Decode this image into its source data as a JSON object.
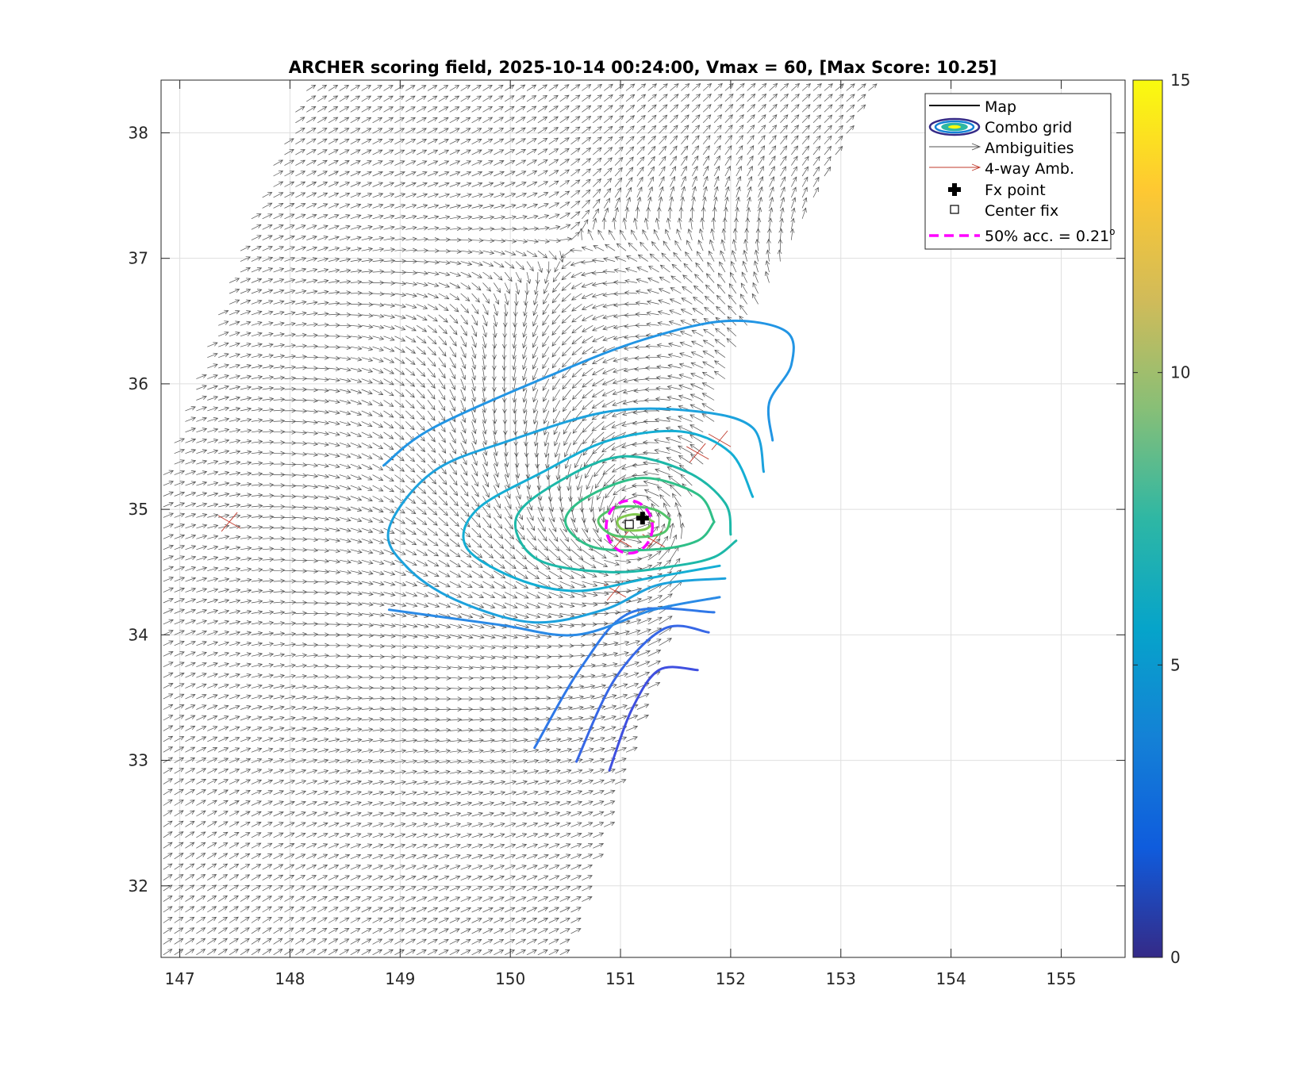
{
  "chart_data": {
    "type": "quiver-contour",
    "title": "ARCHER scoring field, 2025-10-14 00:24:00, Vmax = 60, [Max Score: 10.25]",
    "xlabel": "",
    "ylabel": "",
    "xlim": [
      146.83,
      155.58
    ],
    "ylim": [
      31.43,
      38.42
    ],
    "xticks": [
      147,
      148,
      149,
      150,
      151,
      152,
      153,
      154,
      155
    ],
    "yticks": [
      32,
      33,
      34,
      35,
      36,
      37,
      38
    ],
    "grid": true,
    "colorbar": {
      "min": 0,
      "max": 15,
      "ticks": [
        0,
        5,
        10,
        15
      ]
    },
    "vortex_center": {
      "lon": 151.15,
      "lat": 34.9
    },
    "center_fix": {
      "lon": 151.08,
      "lat": 34.88
    },
    "fx_point": {
      "lon": 151.2,
      "lat": 34.93
    },
    "accuracy_circle": {
      "lon": 151.08,
      "lat": 34.86,
      "radius_deg": 0.21
    },
    "four_way_amb_points": [
      {
        "lon": 147.45,
        "lat": 34.9
      },
      {
        "lon": 151.9,
        "lat": 35.55
      },
      {
        "lon": 151.7,
        "lat": 35.45
      },
      {
        "lon": 151.3,
        "lat": 34.75
      },
      {
        "lon": 151.0,
        "lat": 34.75
      },
      {
        "lon": 150.95,
        "lat": 34.35
      }
    ],
    "swath": {
      "left_edge": [
        [
          146.83,
          35.25
        ],
        [
          147.5,
          37.0
        ],
        [
          148.15,
          38.42
        ]
      ],
      "right_edge": [
        [
          153.3,
          38.42
        ],
        [
          152.0,
          36.15
        ],
        [
          151.55,
          34.7
        ],
        [
          151.3,
          33.7
        ],
        [
          151.0,
          32.9
        ],
        [
          150.5,
          31.43
        ]
      ]
    },
    "contours": [
      {
        "level": 3.5,
        "color": "#3f4fe0",
        "points": [
          [
            150.9,
            32.92
          ],
          [
            151.1,
            33.4
          ],
          [
            151.35,
            33.72
          ],
          [
            151.7,
            33.72
          ]
        ]
      },
      {
        "level": 4.0,
        "color": "#3767e6",
        "points": [
          [
            150.6,
            32.99
          ],
          [
            150.95,
            33.65
          ],
          [
            151.4,
            34.05
          ],
          [
            151.8,
            34.02
          ]
        ]
      },
      {
        "level": 4.5,
        "color": "#2f78e8",
        "points": [
          [
            150.22,
            33.1
          ],
          [
            150.65,
            33.75
          ],
          [
            151.1,
            34.18
          ],
          [
            151.85,
            34.18
          ]
        ]
      },
      {
        "level": 5.0,
        "color": "#2a8ae6",
        "points": [
          [
            148.9,
            34.2
          ],
          [
            149.9,
            34.08
          ],
          [
            150.6,
            34.0
          ],
          [
            151.3,
            34.2
          ],
          [
            151.9,
            34.3
          ]
        ]
      },
      {
        "level": 5.2,
        "color": "#2295e4",
        "points": [
          [
            148.85,
            35.35
          ],
          [
            149.3,
            35.65
          ],
          [
            150.4,
            36.08
          ],
          [
            151.2,
            36.35
          ],
          [
            151.95,
            36.5
          ],
          [
            152.5,
            36.42
          ],
          [
            152.55,
            36.15
          ],
          [
            152.35,
            35.85
          ],
          [
            152.38,
            35.55
          ]
        ]
      },
      {
        "level": 5.8,
        "color": "#1ca2dd",
        "points": [
          [
            152.3,
            35.3
          ],
          [
            152.2,
            35.65
          ],
          [
            151.7,
            35.78
          ],
          [
            150.9,
            35.78
          ],
          [
            150.0,
            35.55
          ],
          [
            149.3,
            35.3
          ],
          [
            148.9,
            34.85
          ],
          [
            149.05,
            34.55
          ],
          [
            149.5,
            34.28
          ],
          [
            150.2,
            34.1
          ],
          [
            150.85,
            34.2
          ],
          [
            151.35,
            34.4
          ],
          [
            151.95,
            34.45
          ]
        ]
      },
      {
        "level": 6.5,
        "color": "#14aed4",
        "points": [
          [
            152.2,
            35.1
          ],
          [
            152.0,
            35.45
          ],
          [
            151.55,
            35.62
          ],
          [
            150.9,
            35.55
          ],
          [
            150.3,
            35.3
          ],
          [
            149.7,
            35.0
          ],
          [
            149.6,
            34.7
          ],
          [
            150.05,
            34.45
          ],
          [
            150.6,
            34.35
          ],
          [
            151.25,
            34.45
          ],
          [
            151.9,
            34.55
          ]
        ]
      },
      {
        "level": 7.5,
        "color": "#1db8a8",
        "points": [
          [
            152.0,
            34.8
          ],
          [
            151.95,
            35.05
          ],
          [
            151.6,
            35.3
          ],
          [
            151.0,
            35.42
          ],
          [
            150.4,
            35.2
          ],
          [
            150.05,
            34.92
          ],
          [
            150.25,
            34.6
          ],
          [
            150.9,
            34.5
          ],
          [
            151.5,
            34.55
          ],
          [
            151.85,
            34.62
          ],
          [
            152.05,
            34.75
          ]
        ]
      },
      {
        "level": 8.5,
        "color": "#2fbf88",
        "points": [
          [
            151.85,
            34.9
          ],
          [
            151.7,
            35.12
          ],
          [
            151.2,
            35.25
          ],
          [
            150.7,
            35.1
          ],
          [
            150.5,
            34.9
          ],
          [
            150.75,
            34.7
          ],
          [
            151.3,
            34.68
          ],
          [
            151.7,
            34.75
          ],
          [
            151.85,
            34.9
          ]
        ]
      },
      {
        "level": 9.3,
        "color": "#52c46a",
        "points": [
          [
            151.45,
            34.92
          ],
          [
            151.3,
            35.0
          ],
          [
            151.0,
            35.02
          ],
          [
            150.8,
            34.92
          ],
          [
            150.92,
            34.8
          ],
          [
            151.2,
            34.78
          ],
          [
            151.4,
            34.82
          ],
          [
            151.45,
            34.92
          ]
        ]
      },
      {
        "level": 10.0,
        "color": "#80c84e",
        "points": [
          [
            151.3,
            34.9
          ],
          [
            151.15,
            34.96
          ],
          [
            150.98,
            34.92
          ],
          [
            151.02,
            34.84
          ],
          [
            151.22,
            34.84
          ],
          [
            151.3,
            34.9
          ]
        ]
      }
    ],
    "legend": {
      "location": "top-right",
      "entries": [
        "Map",
        "Combo grid",
        "Ambiguities",
        "4-way Amb.",
        "Fx point",
        "Center fix",
        "50% acc. = 0.21°"
      ]
    }
  },
  "legend_labels": {
    "map": "Map",
    "combo": "Combo grid",
    "amb": "Ambiguities",
    "fourway": "4-way Amb.",
    "fx": "Fx point",
    "center": "Center fix",
    "acc_main": "50% acc. = 0.21",
    "acc_sup": "o"
  },
  "colors": {
    "axis": "#262626",
    "grid": "#dfdfdf",
    "arrow": "#505050",
    "four_way": "#c0392b",
    "accuracy": "#ff00ff"
  }
}
